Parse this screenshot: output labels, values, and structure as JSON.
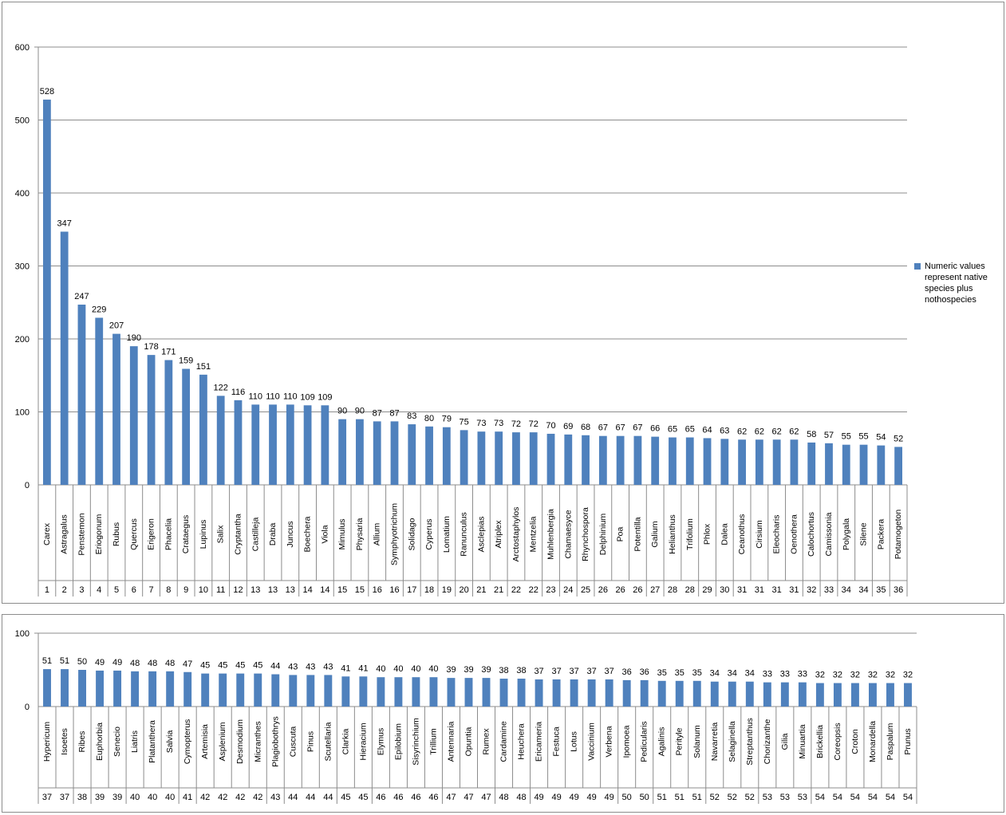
{
  "legend": {
    "label": "Numeric values represent native species plus nothospecies"
  },
  "colors": {
    "bar": "#4f81bd",
    "grid": "#8c8c8c",
    "axis": "#8c8c8c"
  },
  "chart_data": [
    {
      "type": "bar",
      "ylim": [
        0,
        600
      ],
      "yticks": [
        0,
        100,
        200,
        300,
        400,
        500,
        600
      ],
      "grid": true,
      "legend_position": "right",
      "categories": [
        "Carex",
        "Astragalus",
        "Penstemon",
        "Eriogonum",
        "Rubus",
        "Quercus",
        "Erigeron",
        "Phacelia",
        "Crataegus",
        "Lupinus",
        "Salix",
        "Cryptantha",
        "Castilleja",
        "Draba",
        "Juncus",
        "Boechera",
        "Viola",
        "Mimulus",
        "Physaria",
        "Allium",
        "Symphyotrichum",
        "Solidago",
        "Cyperus",
        "Lomatium",
        "Ranunculus",
        "Asclepias",
        "Atriplex",
        "Arctostaphylos",
        "Mentzelia",
        "Muhlenbergia",
        "Chamaesyce",
        "Rhynchospora",
        "Delphinium",
        "Poa",
        "Potentilla",
        "Galium",
        "Helianthus",
        "Trifolium",
        "Phlox",
        "Dalea",
        "Ceanothus",
        "Cirsium",
        "Eleocharis",
        "Oenothera",
        "Calochortus",
        "Camissonia",
        "Polygala",
        "Silene",
        "Packera",
        "Potamogeton"
      ],
      "ranks": [
        "1",
        "2",
        "3",
        "4",
        "5",
        "6",
        "7",
        "8",
        "9",
        "10",
        "11",
        "12",
        "13",
        "13",
        "13",
        "14",
        "14",
        "15",
        "15",
        "16",
        "16",
        "17",
        "18",
        "19",
        "20",
        "21",
        "21",
        "22",
        "22",
        "23",
        "24",
        "25",
        "26",
        "26",
        "26",
        "27",
        "28",
        "28",
        "29",
        "30",
        "31",
        "31",
        "31",
        "31",
        "32",
        "33",
        "34",
        "34",
        "35",
        "36"
      ],
      "values": [
        528,
        347,
        247,
        229,
        207,
        190,
        178,
        171,
        159,
        151,
        122,
        116,
        110,
        110,
        110,
        109,
        109,
        90,
        90,
        87,
        87,
        83,
        80,
        79,
        75,
        73,
        73,
        72,
        72,
        70,
        69,
        68,
        67,
        67,
        67,
        66,
        65,
        65,
        64,
        63,
        62,
        62,
        62,
        62,
        58,
        57,
        55,
        55,
        54,
        52
      ]
    },
    {
      "type": "bar",
      "ylim": [
        0,
        100
      ],
      "yticks": [
        0,
        100
      ],
      "grid": true,
      "categories": [
        "Hypericum",
        "Isoetes",
        "Ribes",
        "Euphorbia",
        "Senecio",
        "Liatris",
        "Platanthera",
        "Salvia",
        "Cymopterus",
        "Artemisia",
        "Asplenium",
        "Desmodium",
        "Micranthes",
        "Plagiobothrys",
        "Cuscuta",
        "Pinus",
        "Scutellaria",
        "Clarkia",
        "Hieracium",
        "Elymus",
        "Epilobium",
        "Sisyrinchium",
        "Trillium",
        "Antennaria",
        "Opuntia",
        "Rumex",
        "Cardamine",
        "Heuchera",
        "Ericameria",
        "Festuca",
        "Lotus",
        "Vaccinium",
        "Verbena",
        "Ipomoea",
        "Pedicularis",
        "Agalinis",
        "Perityle",
        "Solanum",
        "Navarretia",
        "Selaginella",
        "Streptanthus",
        "Chorizanthe",
        "Gilia",
        "Minuartia",
        "Brickellia",
        "Coreopsis",
        "Croton",
        "Monardella",
        "Paspalum",
        "Prunus"
      ],
      "ranks": [
        "37",
        "37",
        "38",
        "39",
        "39",
        "40",
        "40",
        "40",
        "41",
        "42",
        "42",
        "42",
        "42",
        "43",
        "44",
        "44",
        "44",
        "45",
        "45",
        "46",
        "46",
        "46",
        "46",
        "47",
        "47",
        "47",
        "48",
        "48",
        "49",
        "49",
        "49",
        "49",
        "49",
        "50",
        "50",
        "51",
        "51",
        "51",
        "52",
        "52",
        "52",
        "53",
        "53",
        "53",
        "54",
        "54",
        "54",
        "54",
        "54",
        "54"
      ],
      "values": [
        51,
        51,
        50,
        49,
        49,
        48,
        48,
        48,
        47,
        45,
        45,
        45,
        45,
        44,
        43,
        43,
        43,
        41,
        41,
        40,
        40,
        40,
        40,
        39,
        39,
        39,
        38,
        38,
        37,
        37,
        37,
        37,
        37,
        36,
        36,
        35,
        35,
        35,
        34,
        34,
        34,
        33,
        33,
        33,
        32,
        32,
        32,
        32,
        32,
        32
      ]
    }
  ]
}
